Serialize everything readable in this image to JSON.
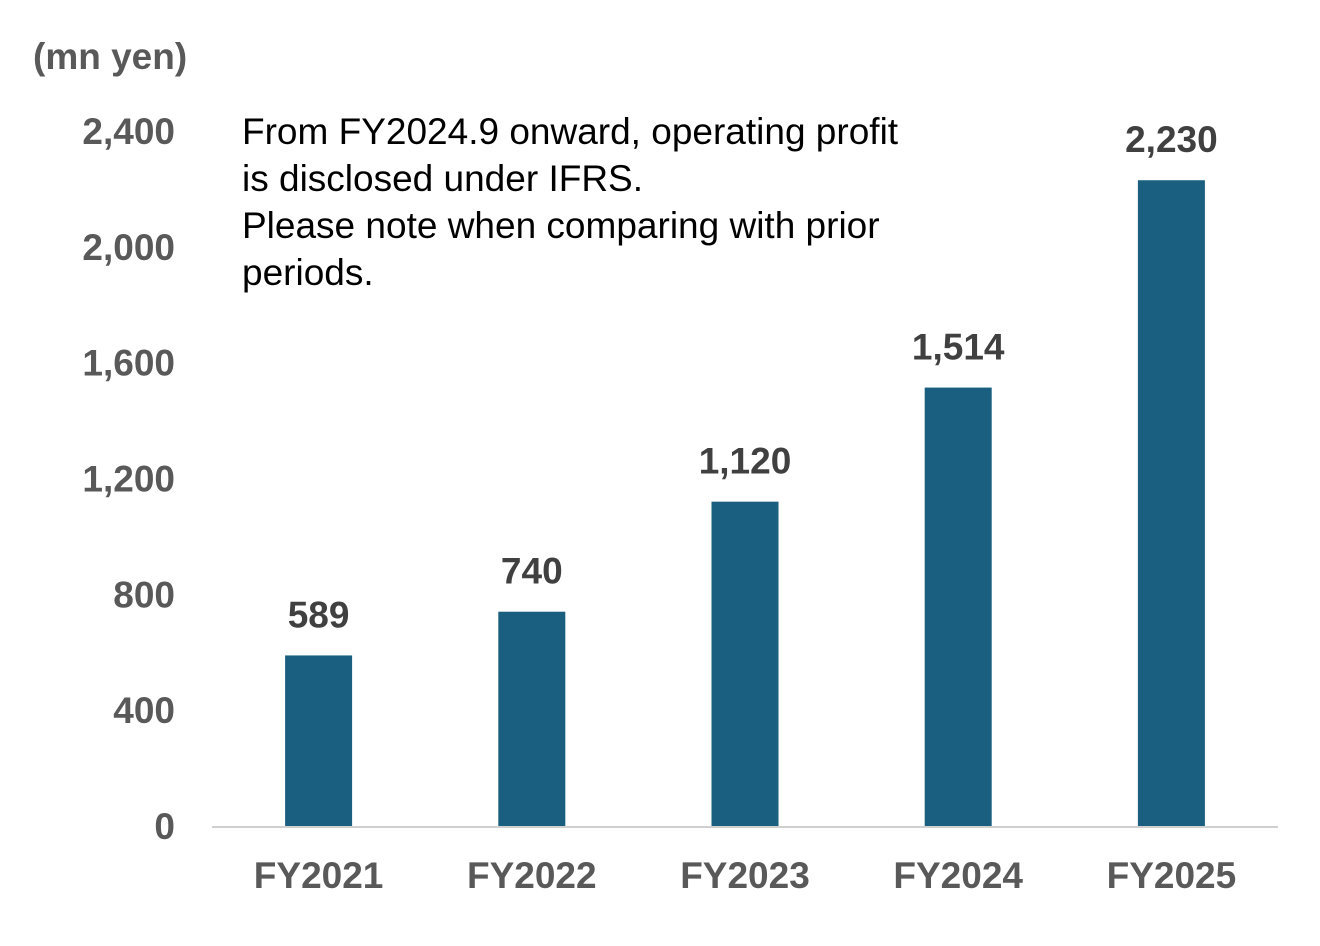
{
  "chart_data": {
    "type": "bar",
    "unit_label": "(mn yen)",
    "categories": [
      "FY2021",
      "FY2022",
      "FY2023",
      "FY2024",
      "FY2025"
    ],
    "values": [
      589,
      740,
      1120,
      1514,
      2230
    ],
    "value_labels": [
      "589",
      "740",
      "1,120",
      "1,514",
      "2,230"
    ],
    "ylim": [
      0,
      2400
    ],
    "yticks": [
      0,
      400,
      800,
      1200,
      1600,
      2000,
      2400
    ],
    "ytick_labels": [
      "0",
      "400",
      "800",
      "1,200",
      "1,600",
      "2,000",
      "2,400"
    ],
    "bar_color": "#1a5f80",
    "gridlines": false,
    "annotation": [
      "From FY2024.9 onward, operating profit",
      "is disclosed under IFRS.",
      "Please note when comparing with prior",
      "periods."
    ]
  }
}
